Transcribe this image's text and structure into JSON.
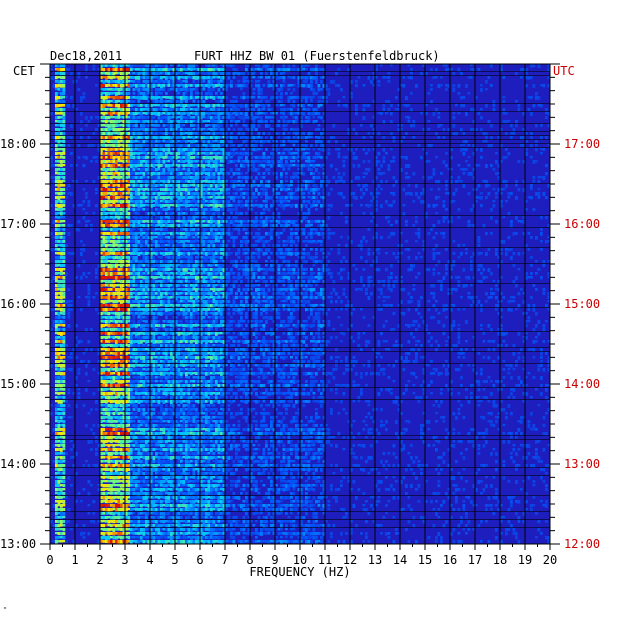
{
  "chart_data": {
    "type": "heatmap",
    "title_date": "Dec18,2011",
    "title_station": "FURT HHZ BW 01 (Fuerstenfeldbruck)",
    "left_axis_label": "CET",
    "right_axis_label": "UTC",
    "xlabel": "FREQUENCY (HZ)",
    "xlim": [
      0,
      20
    ],
    "x_ticks": [
      "0",
      "1",
      "2",
      "3",
      "4",
      "5",
      "6",
      "7",
      "8",
      "9",
      "10",
      "11",
      "12",
      "13",
      "14",
      "15",
      "16",
      "17",
      "18",
      "19",
      "20"
    ],
    "y_ticks_cet": [
      "18:00",
      "17:00",
      "16:00",
      "15:00",
      "14:00",
      "13:00"
    ],
    "y_ticks_utc": [
      "17:00",
      "16:00",
      "15:00",
      "14:00",
      "13:00",
      "12:00"
    ],
    "y_range_cet": [
      "13:00",
      "19:00"
    ],
    "colors": {
      "background": "#1e1ebe",
      "utc_label": "#cc0000",
      "cet_label": "#000000",
      "grid": "#000000"
    },
    "energy_bands_hz": [
      {
        "from": 0.2,
        "to": 0.6,
        "level": "high"
      },
      {
        "from": 2.0,
        "to": 3.2,
        "level": "highest"
      },
      {
        "from": 3.2,
        "to": 7.0,
        "level": "moderate"
      },
      {
        "from": 7.0,
        "to": 11.0,
        "level": "low"
      },
      {
        "from": 11.0,
        "to": 20.0,
        "level": "background"
      }
    ]
  },
  "footer_mark": "\""
}
